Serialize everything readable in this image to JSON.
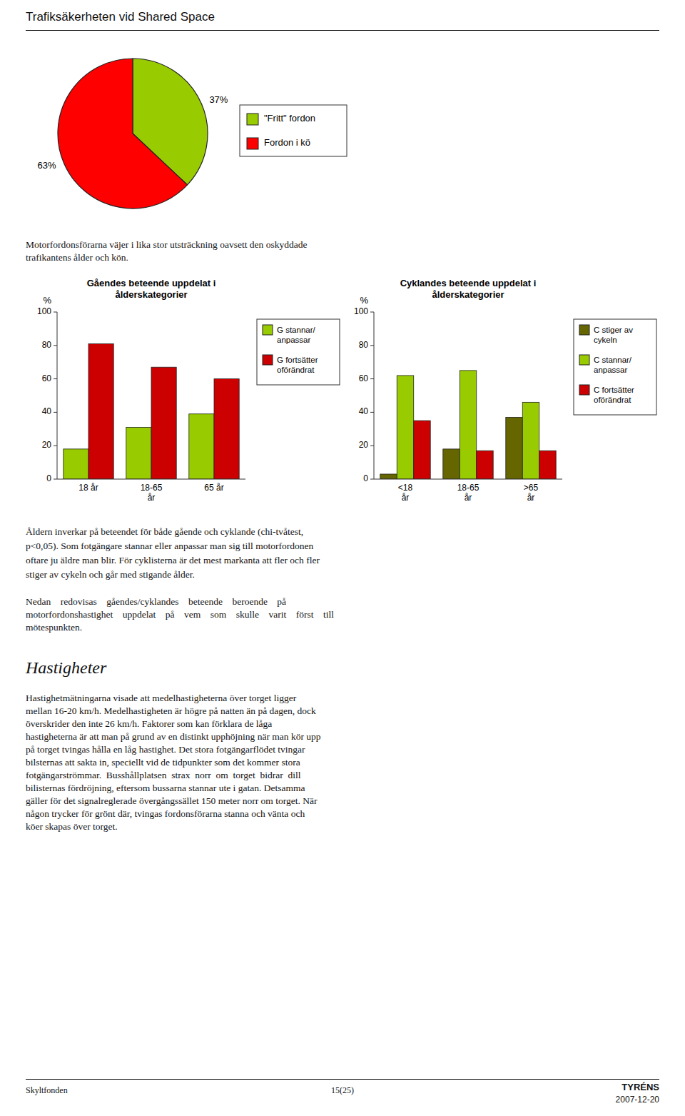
{
  "title": "Trafiksäkerheten vid Shared Space",
  "paragraph1": [
    "Motorfordonsförarna väjer i lika stor utsträckning oavsett den oskyddade",
    "trafikantens ålder och kön."
  ],
  "paragraph2": "Åldern inverkar på beteendet för både gående och cyklande (chi-tvåtest,\np<0,05). Som fotgängare stannar eller anpassar man sig till motorfordonen\noftare ju äldre man blir. För cyklisterna är det mest markanta att fler och fler\nstiger av cykeln och går med stigande ålder.",
  "paragraph3": [
    "Nedan    redovisas    gåendes/cyklandes    beteende    beroende    på",
    "motorfordonshastighet    uppdelat    på    vem    som    skulle    varit    först    till",
    "mötespunkten."
  ],
  "heading": "Hastigheter",
  "paragraph4": [
    "Hastighetmätningarna visade att medelhastigheterna över torget ligger",
    "mellan 16-20 km/h. Medelhastigheten är högre på natten än på dagen, dock",
    "överskrider den inte 26 km/h. Faktorer som kan förklara de låga",
    "hastigheterna är att man på grund av en distinkt upphöjning när man kör upp",
    "på torget tvingas hålla en låg hastighet. Det stora fotgängarflödet tvingar",
    "bilsternas att sakta in, speciellt vid de tidpunkter som det kommer stora",
    "fotgängarströmmar.  Busshållplatsen  strax  norr  om  torget  bidrar  dill",
    "bilisternas fördröjning, eftersom bussarna stannar ute i gatan. Detsamma",
    "gäller för det signalreglerade övergångssället 150 meter norr om torget. När",
    "någon trycker för grönt där, tvingas fordonsförarna stanna och vänta och",
    "köer skapas över torget."
  ],
  "footer": {
    "left": "Skyltfonden",
    "center": "15(25)",
    "right": [
      "TYRÉNS",
      "2007-12-20"
    ]
  },
  "chart_data": [
    {
      "type": "pie",
      "categories": [
        "\"Fritt\" fordon",
        "Fordon i kö"
      ],
      "values": [
        37,
        63
      ],
      "value_labels": [
        "37%",
        "63%"
      ],
      "colors": [
        "#99cc00",
        "#ff0000"
      ],
      "data_labels": true,
      "legend": "right"
    },
    {
      "type": "bar",
      "title": "Gåendes beteende uppdelat i\nålderskategorier",
      "categories": [
        "18 år",
        "18-65\når",
        "65 år"
      ],
      "series": [
        {
          "name": "G stannar/\nanpassar",
          "color": "#99cc00",
          "values": [
            18,
            31,
            39
          ]
        },
        {
          "name": "G fortsätter\noförändrat",
          "color": "#cc0000",
          "values": [
            81,
            67,
            60
          ]
        }
      ],
      "y_label": "%",
      "ylim": [
        0,
        100
      ],
      "yticks": [
        0,
        20,
        40,
        60,
        80,
        100
      ],
      "legend": "right"
    },
    {
      "type": "bar",
      "title": "Cyklandes beteende uppdelat i\nålderskategorier",
      "categories": [
        "<18\når",
        "18-65\når",
        ">65\når"
      ],
      "series": [
        {
          "name": "C stiger av\ncykeln",
          "color": "#666600",
          "values": [
            3,
            18,
            37
          ]
        },
        {
          "name": "C stannar/\nanpassar",
          "color": "#99cc00",
          "values": [
            62,
            65,
            46
          ]
        },
        {
          "name": "C fortsätter\noförändrat",
          "color": "#cc0000",
          "values": [
            35,
            17,
            17
          ]
        }
      ],
      "y_label": "%",
      "ylim": [
        0,
        100
      ],
      "yticks": [
        0,
        20,
        40,
        60,
        80,
        100
      ],
      "legend": "right"
    }
  ]
}
